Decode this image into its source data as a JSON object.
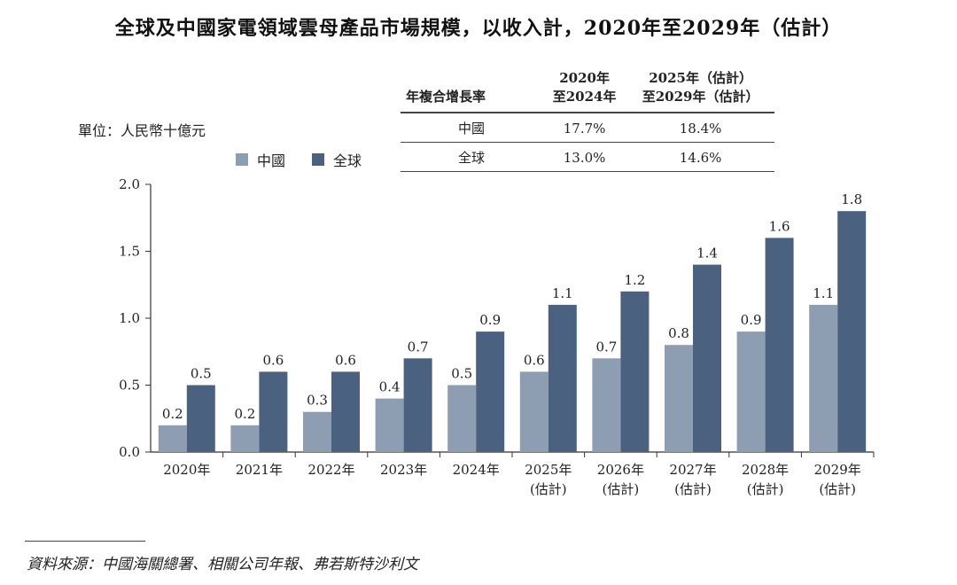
{
  "colors": {
    "china": "#8d9eb2",
    "global": "#4b6180",
    "axis": "#333333"
  },
  "cagr_table": {
    "header": {
      "label": "年複合增長率",
      "col1": [
        "2020年",
        "至2024年"
      ],
      "col2": [
        "2025年（估計）",
        "至2029年（估計）"
      ]
    },
    "rows": [
      {
        "name": "中國",
        "v1": "17.7%",
        "v2": "18.4%"
      },
      {
        "name": "全球",
        "v1": "13.0%",
        "v2": "14.6%"
      }
    ]
  },
  "unit": "單位：人民幣十億元",
  "source": "資料來源：中國海關總署、相關公司年報、弗若斯特沙利文",
  "chart_data": {
    "type": "bar",
    "title": "全球及中國家電領域雲母產品市場規模，以收入計，2020年至2029年（估計）",
    "categories": [
      [
        "2020年"
      ],
      [
        "2021年"
      ],
      [
        "2022年"
      ],
      [
        "2023年"
      ],
      [
        "2024年"
      ],
      [
        "2025年",
        "(估計)"
      ],
      [
        "2026年",
        "(估計)"
      ],
      [
        "2027年",
        "(估計)"
      ],
      [
        "2028年",
        "(估計)"
      ],
      [
        "2029年",
        "(估計)"
      ]
    ],
    "series": [
      {
        "name": "中國",
        "values": [
          0.2,
          0.2,
          0.3,
          0.4,
          0.5,
          0.6,
          0.7,
          0.8,
          0.9,
          1.1
        ]
      },
      {
        "name": "全球",
        "values": [
          0.5,
          0.6,
          0.6,
          0.7,
          0.9,
          1.1,
          1.2,
          1.4,
          1.6,
          1.8
        ]
      }
    ],
    "ylim": [
      0,
      2.0
    ],
    "yticks": [
      "0.0",
      "0.5",
      "1.0",
      "1.5",
      "2.0"
    ],
    "legend_position": "top-left",
    "grid": false
  }
}
